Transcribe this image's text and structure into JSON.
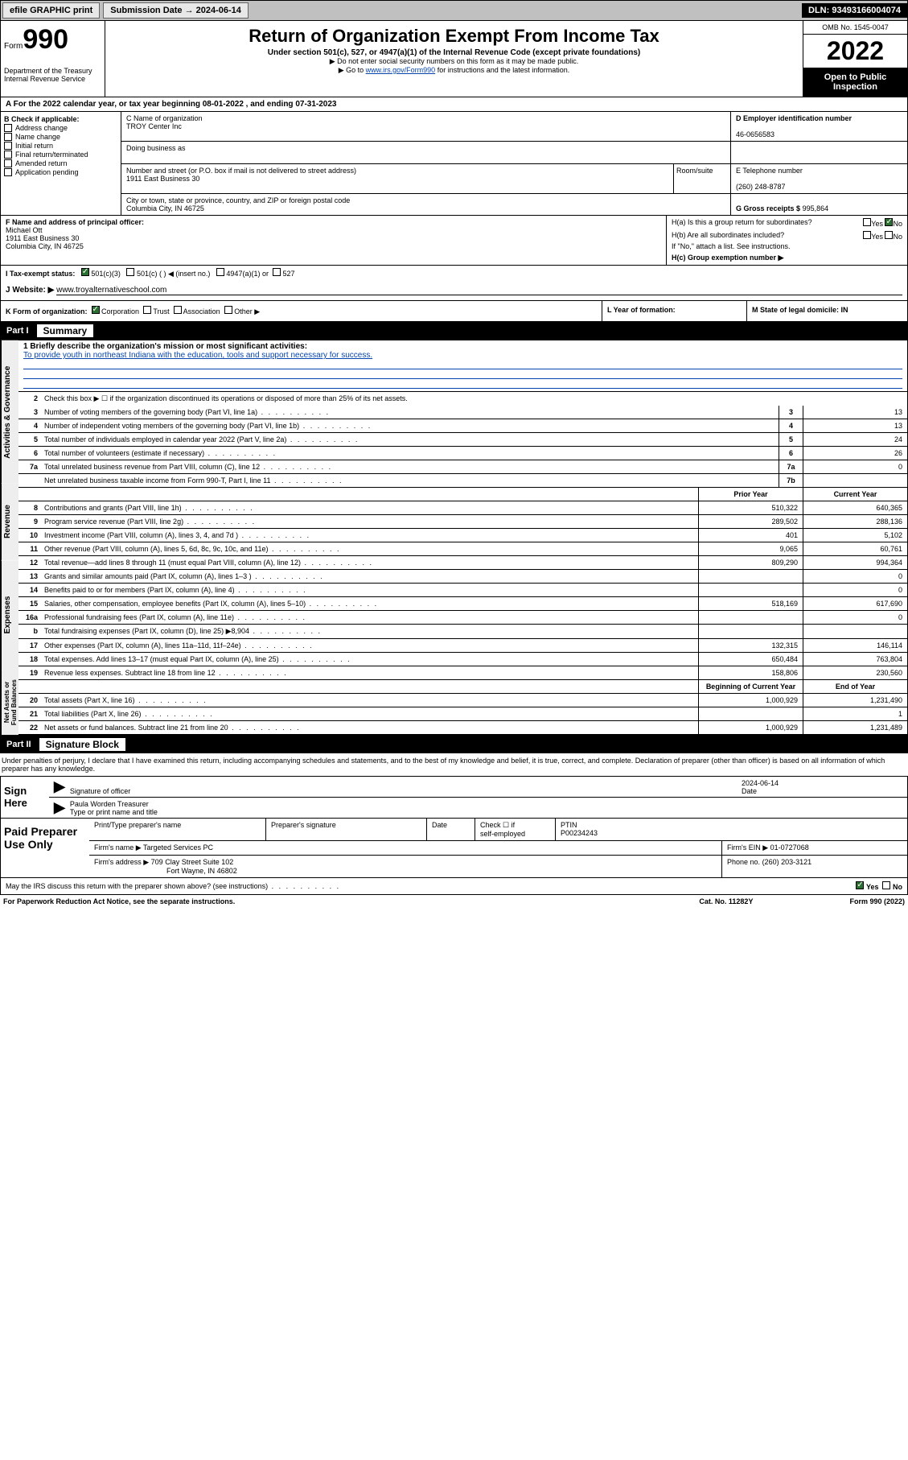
{
  "topbar": {
    "efile": "efile GRAPHIC print",
    "sub_label": "Submission Date → 2024-06-14",
    "dln": "DLN: 93493166004074"
  },
  "header": {
    "form_label": "Form",
    "form_no": "990",
    "dept": "Department of the Treasury Internal Revenue Service",
    "title": "Return of Organization Exempt From Income Tax",
    "sub1": "Under section 501(c), 527, or 4947(a)(1) of the Internal Revenue Code (except private foundations)",
    "sub2": "▶ Do not enter social security numbers on this form as it may be made public.",
    "sub3_pre": "▶ Go to ",
    "sub3_link": "www.irs.gov/Form990",
    "sub3_post": " for instructions and the latest information.",
    "omb": "OMB No. 1545-0047",
    "year": "2022",
    "open": "Open to Public Inspection"
  },
  "rowA": "A For the 2022 calendar year, or tax year beginning 08-01-2022   , and ending 07-31-2023",
  "sectionB": {
    "label": "B Check if applicable:",
    "opts": [
      "Address change",
      "Name change",
      "Initial return",
      "Final return/terminated",
      "Amended return",
      "Application pending"
    ]
  },
  "sectionC": {
    "name_label": "C Name of organization",
    "name": "TROY Center Inc",
    "dba_label": "Doing business as",
    "addr_label": "Number and street (or P.O. box if mail is not delivered to street address)",
    "room_label": "Room/suite",
    "addr": "1911 East Business 30",
    "city_label": "City or town, state or province, country, and ZIP or foreign postal code",
    "city": "Columbia City, IN  46725"
  },
  "sectionD": {
    "label": "D Employer identification number",
    "val": "46-0656583"
  },
  "sectionE": {
    "label": "E Telephone number",
    "val": "(260) 248-8787"
  },
  "sectionG": {
    "label": "G Gross receipts $",
    "val": "995,864"
  },
  "sectionF": {
    "label": "F Name and address of principal officer:",
    "name": "Michael Ott",
    "addr1": "1911 East Business 30",
    "addr2": "Columbia City, IN  46725"
  },
  "sectionH": {
    "ha": "H(a)  Is this a group return for subordinates?",
    "hb": "H(b)  Are all subordinates included?",
    "hnote": "If \"No,\" attach a list. See instructions.",
    "hc": "H(c)  Group exemption number ▶"
  },
  "sectionI": {
    "label": "I   Tax-exempt status:",
    "o1": "501(c)(3)",
    "o2": "501(c) (  ) ◀ (insert no.)",
    "o3": "4947(a)(1) or",
    "o4": "527"
  },
  "sectionJ": {
    "label": "J   Website: ▶",
    "val": "www.troyalternativeschool.com"
  },
  "sectionK": {
    "label": "K Form of organization:",
    "corp": "Corporation",
    "trust": "Trust",
    "assoc": "Association",
    "other": "Other ▶",
    "l": "L Year of formation:",
    "m": "M State of legal domicile: IN"
  },
  "part1": {
    "num": "Part I",
    "title": "Summary",
    "q1_label": "1  Briefly describe the organization's mission or most significant activities:",
    "q1_text": "To provide youth in northeast Indiana with the education, tools and support necessary for success.",
    "q2": "Check this box ▶ ☐  if the organization discontinued its operations or disposed of more than 25% of its net assets.",
    "rows_gov": [
      {
        "n": "3",
        "t": "Number of voting members of the governing body (Part VI, line 1a)",
        "b": "3",
        "v": "13"
      },
      {
        "n": "4",
        "t": "Number of independent voting members of the governing body (Part VI, line 1b)",
        "b": "4",
        "v": "13"
      },
      {
        "n": "5",
        "t": "Total number of individuals employed in calendar year 2022 (Part V, line 2a)",
        "b": "5",
        "v": "24"
      },
      {
        "n": "6",
        "t": "Total number of volunteers (estimate if necessary)",
        "b": "6",
        "v": "26"
      },
      {
        "n": "7a",
        "t": "Total unrelated business revenue from Part VIII, column (C), line 12",
        "b": "7a",
        "v": "0"
      },
      {
        "n": "",
        "t": "Net unrelated business taxable income from Form 990-T, Part I, line 11",
        "b": "7b",
        "v": ""
      }
    ],
    "col_py": "Prior Year",
    "col_cy": "Current Year",
    "rows_rev": [
      {
        "n": "8",
        "t": "Contributions and grants (Part VIII, line 1h)",
        "py": "510,322",
        "cy": "640,365"
      },
      {
        "n": "9",
        "t": "Program service revenue (Part VIII, line 2g)",
        "py": "289,502",
        "cy": "288,136"
      },
      {
        "n": "10",
        "t": "Investment income (Part VIII, column (A), lines 3, 4, and 7d )",
        "py": "401",
        "cy": "5,102"
      },
      {
        "n": "11",
        "t": "Other revenue (Part VIII, column (A), lines 5, 6d, 8c, 9c, 10c, and 11e)",
        "py": "9,065",
        "cy": "60,761"
      },
      {
        "n": "12",
        "t": "Total revenue—add lines 8 through 11 (must equal Part VIII, column (A), line 12)",
        "py": "809,290",
        "cy": "994,364"
      }
    ],
    "rows_exp": [
      {
        "n": "13",
        "t": "Grants and similar amounts paid (Part IX, column (A), lines 1–3 )",
        "py": "",
        "cy": "0"
      },
      {
        "n": "14",
        "t": "Benefits paid to or for members (Part IX, column (A), line 4)",
        "py": "",
        "cy": "0"
      },
      {
        "n": "15",
        "t": "Salaries, other compensation, employee benefits (Part IX, column (A), lines 5–10)",
        "py": "518,169",
        "cy": "617,690"
      },
      {
        "n": "16a",
        "t": "Professional fundraising fees (Part IX, column (A), line 11e)",
        "py": "",
        "cy": "0"
      },
      {
        "n": "b",
        "t": "Total fundraising expenses (Part IX, column (D), line 25) ▶8,904",
        "py": "",
        "cy": ""
      },
      {
        "n": "17",
        "t": "Other expenses (Part IX, column (A), lines 11a–11d, 11f–24e)",
        "py": "132,315",
        "cy": "146,114"
      },
      {
        "n": "18",
        "t": "Total expenses. Add lines 13–17 (must equal Part IX, column (A), line 25)",
        "py": "650,484",
        "cy": "763,804"
      },
      {
        "n": "19",
        "t": "Revenue less expenses. Subtract line 18 from line 12",
        "py": "158,806",
        "cy": "230,560"
      }
    ],
    "col_bcy": "Beginning of Current Year",
    "col_ey": "End of Year",
    "rows_net": [
      {
        "n": "20",
        "t": "Total assets (Part X, line 16)",
        "py": "1,000,929",
        "cy": "1,231,490"
      },
      {
        "n": "21",
        "t": "Total liabilities (Part X, line 26)",
        "py": "",
        "cy": "1"
      },
      {
        "n": "22",
        "t": "Net assets or fund balances. Subtract line 21 from line 20",
        "py": "1,000,929",
        "cy": "1,231,489"
      }
    ]
  },
  "part2": {
    "num": "Part II",
    "title": "Signature Block"
  },
  "sig": {
    "intro": "Under penalties of perjury, I declare that I have examined this return, including accompanying schedules and statements, and to the best of my knowledge and belief, it is true, correct, and complete. Declaration of preparer (other than officer) is based on all information of which preparer has any knowledge.",
    "sign_here": "Sign Here",
    "sig_officer": "Signature of officer",
    "date": "2024-06-14",
    "date_lbl": "Date",
    "name": "Paula Worden  Treasurer",
    "name_lbl": "Type or print name and title"
  },
  "prep": {
    "title": "Paid Preparer Use Only",
    "h1": "Print/Type preparer's name",
    "h2": "Preparer's signature",
    "h3": "Date",
    "h4_a": "Check ☐ if",
    "h4_b": "self-employed",
    "h5": "PTIN",
    "ptin": "P00234243",
    "firm_lbl": "Firm's name    ▶",
    "firm": "Targeted Services PC",
    "ein_lbl": "Firm's EIN ▶",
    "ein": "01-0727068",
    "addr_lbl": "Firm's address ▶",
    "addr1": "709 Clay Street Suite 102",
    "addr2": "Fort Wayne, IN  46802",
    "phone_lbl": "Phone no.",
    "phone": "(260) 203-3121"
  },
  "footer": {
    "discuss": "May the IRS discuss this return with the preparer shown above? (see instructions)",
    "pra": "For Paperwork Reduction Act Notice, see the separate instructions.",
    "cat": "Cat. No. 11282Y",
    "form": "Form 990 (2022)"
  }
}
